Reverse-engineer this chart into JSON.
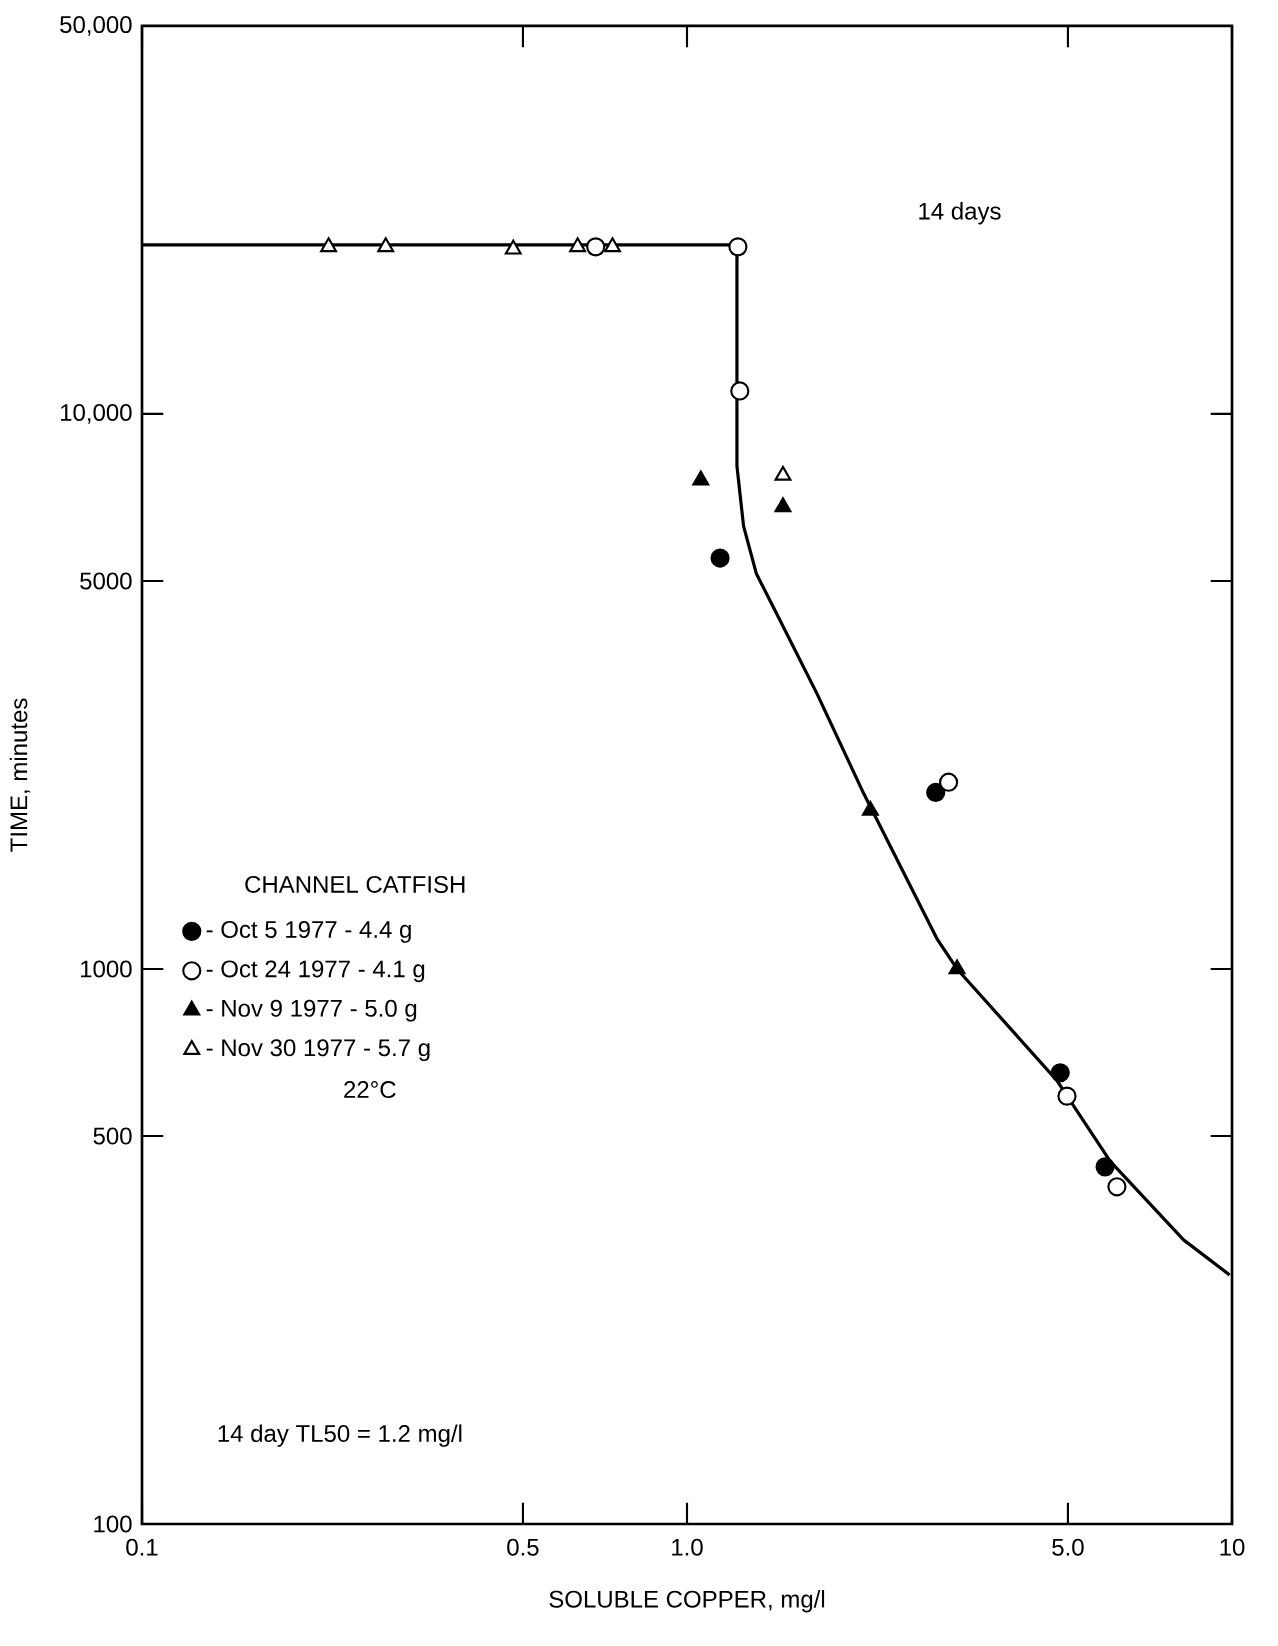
{
  "chart_data": {
    "type": "scatter",
    "xlabel": "SOLUBLE COPPER, mg/l",
    "ylabel": "TIME, minutes",
    "legend_title": "CHANNEL CATFISH",
    "log": "xy",
    "xlim": [
      0.1,
      10
    ],
    "ylim": [
      100,
      50000
    ],
    "xticks": [
      {
        "value": 0.1,
        "label": "0.1"
      },
      {
        "value": 0.5,
        "label": "0.5"
      },
      {
        "value": 1,
        "label": "1.0"
      },
      {
        "value": 5,
        "label": "5.0"
      },
      {
        "value": 10,
        "label": "10"
      }
    ],
    "yticks": [
      {
        "value": 100,
        "label": "100"
      },
      {
        "value": 500,
        "label": "500"
      },
      {
        "value": 1000,
        "label": "1000"
      },
      {
        "value": 5000,
        "label": "5000"
      },
      {
        "value": 10000,
        "label": "10,000"
      },
      {
        "value": 50000,
        "label": "50,000"
      }
    ],
    "legend": "left",
    "series": [
      {
        "name": "- Oct 5 1977 - 4.4 g",
        "marker": "circle",
        "color": "#000000",
        "x": [
          1.15,
          2.86,
          4.84,
          5.85
        ],
        "values": [
          5500,
          2080,
          650,
          440
        ]
      },
      {
        "name": "- Oct 24 1977 - 4.1 g",
        "marker": "circle",
        "color": "#ffffff",
        "x": [
          0.68,
          1.24,
          1.25,
          3.02,
          4.98,
          6.15
        ],
        "values": [
          20000,
          20000,
          11000,
          2170,
          590,
          405
        ]
      },
      {
        "name": "- Nov 9 1977 - 5.0 g",
        "marker": "triangle",
        "color": "#000000",
        "x": [
          1.06,
          1.5,
          2.17,
          3.13
        ],
        "values": [
          7600,
          6800,
          1930,
          1000
        ]
      },
      {
        "name": "- Nov 30 1977 - 5.7 g",
        "marker": "triangle",
        "color": "#ffffff",
        "x": [
          0.22,
          0.28,
          0.48,
          0.63,
          0.73,
          1.5
        ],
        "values": [
          20000,
          20000,
          19800,
          20000,
          20000,
          7750
        ]
      },
      {
        "type": "line",
        "marker": "none",
        "color": "#000000",
        "x": [
          0.1,
          1.235,
          1.235,
          1.27,
          1.34,
          1.46,
          1.73,
          2.11,
          2.88,
          3.13,
          4.77,
          5.98,
          8.15,
          9.9
        ],
        "values": [
          20160,
          20160,
          8050,
          6280,
          5160,
          4370,
          3140,
          2070,
          1130,
          1000,
          630,
          450,
          325,
          281
        ]
      }
    ],
    "annotations": [
      "14 days",
      "22°C",
      "14 day TL50 = 1.2 mg/l"
    ]
  }
}
